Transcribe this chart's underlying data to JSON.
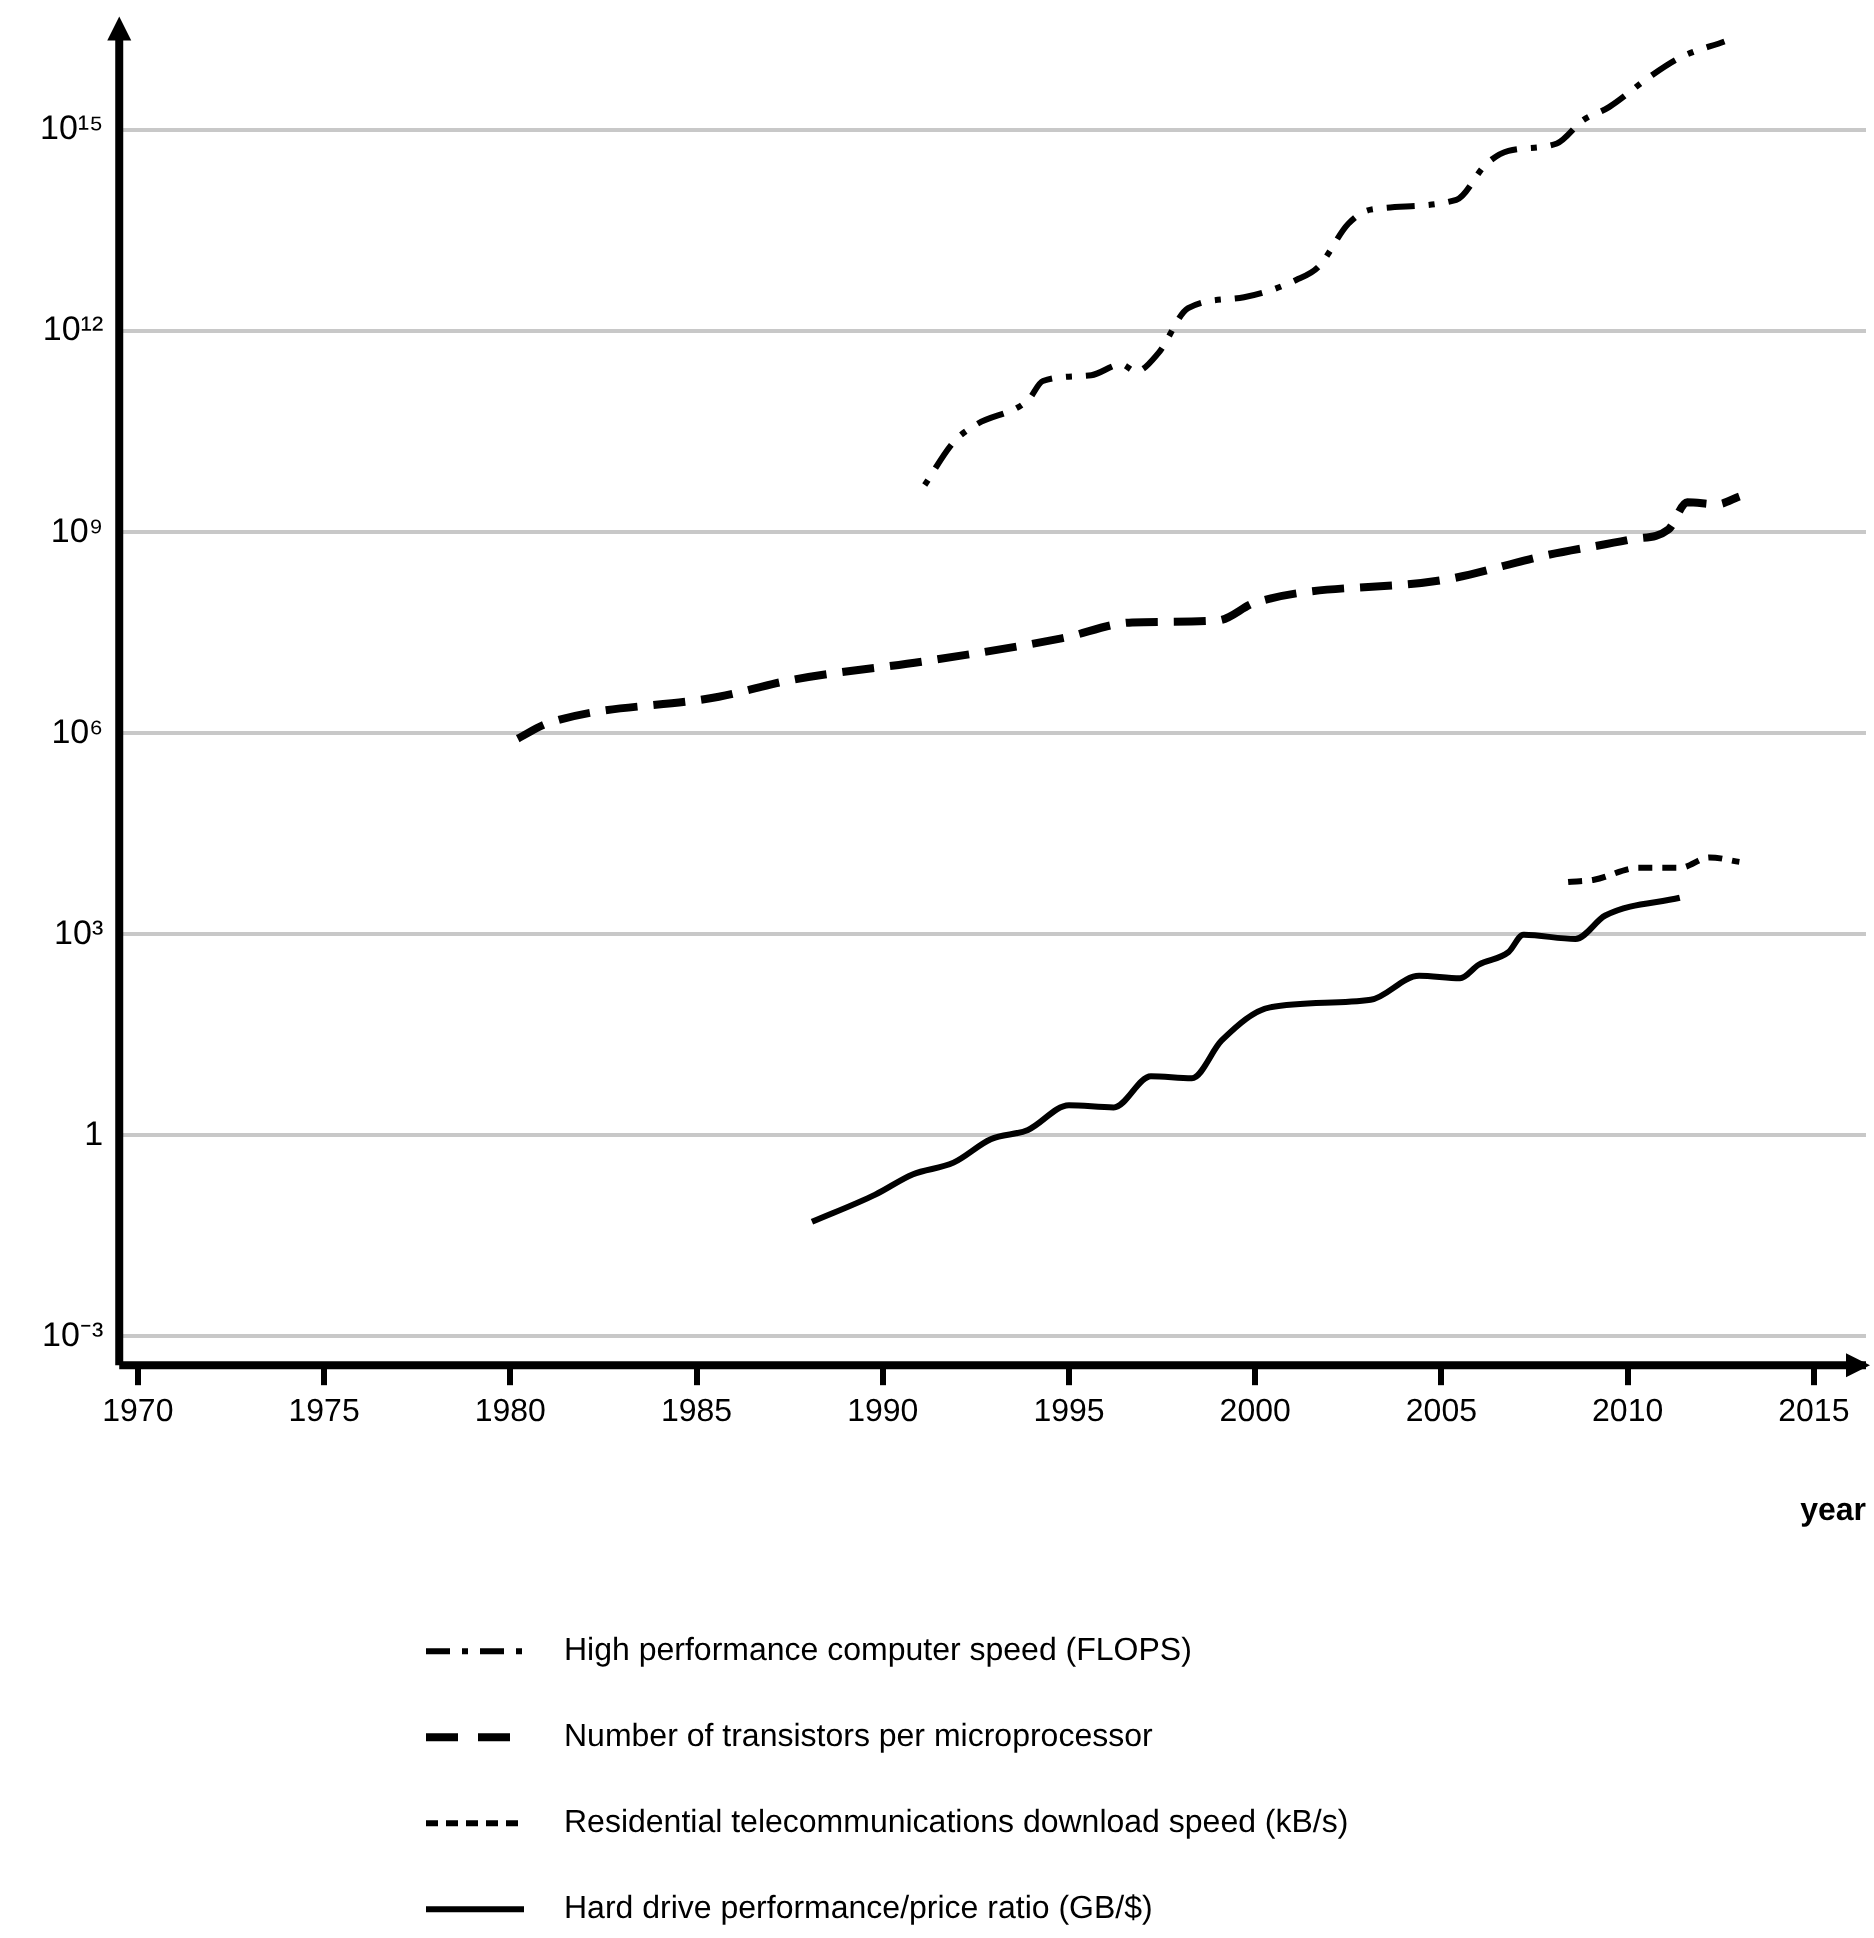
{
  "chart_data": {
    "type": "line",
    "xlabel": "year",
    "log": "y",
    "grid": "y",
    "legend": "bottom",
    "marker": "none",
    "xlim": [
      1969.5,
      2016.4
    ],
    "xticks": [
      1970,
      1975,
      1980,
      1985,
      1990,
      1995,
      2000,
      2005,
      2010,
      2015
    ],
    "ylim": [
      0.00037,
      2.5e+16
    ],
    "yticks": [
      {
        "value": 0.001,
        "label": "10⁻³"
      },
      1,
      {
        "value": 1000,
        "label": "10³"
      },
      {
        "value": 1000000.0,
        "label": "10⁶"
      },
      {
        "value": 1000000000.0,
        "label": "10⁹"
      },
      {
        "value": 1000000000000.0,
        "label": "10¹²"
      },
      {
        "value": 1000000000000000.0,
        "label": "10¹⁵"
      }
    ],
    "series": [
      {
        "name": "High performance computer speed (FLOPS)",
        "color": "#000000",
        "line_style": "dashdot",
        "x": [
          1991.1,
          1991.9,
          1992.5,
          1993.9,
          1994.3,
          1995.6,
          1996.4,
          1996.8,
          1997.4,
          1998.2,
          1999.7,
          2001.1,
          2001.7,
          2002.5,
          2003.1,
          2005.4,
          2006.2,
          2006.8,
          2008.1,
          2008.8,
          2009.5,
          2010.6,
          2011.4,
          2012.6
        ],
        "values": [
          4800000000.0,
          22000000000.0,
          40000000000.0,
          93000000000.0,
          180000000000.0,
          220000000000.0,
          320000000000.0,
          250000000000.0,
          470000000000.0,
          2200000000000.0,
          3200000000000.0,
          5800000000000.0,
          9100000000000.0,
          40000000000000.0,
          65000000000000.0,
          91000000000000.0,
          310000000000000.0,
          490000000000000.0,
          630000000000000.0,
          1400000000000000.0,
          2200000000000000.0,
          6300000000000000.0,
          1.2e+16,
          2.1e+16
        ]
      },
      {
        "name": "Number of transistors per microprocessor",
        "color": "#000000",
        "line_style": "dashed",
        "x": [
          1980.2,
          1981.0,
          1985.6,
          1987.6,
          1991.2,
          1994.8,
          1996.7,
          1999.0,
          2000.0,
          2005.2,
          2007.8,
          2010.1,
          2011.1,
          2011.6,
          2012.4,
          2013.0
        ],
        "values": [
          830000.0,
          1400000.0,
          3500000.0,
          6300000.0,
          12000000.0,
          26000000.0,
          45000000.0,
          48000000.0,
          89000000.0,
          200000000.0,
          450000000.0,
          780000000.0,
          1100000000.0,
          2800000000.0,
          2600000000.0,
          3400000000.0
        ]
      },
      {
        "name": "Residential telecommunications download speed (kB/s)",
        "color": "#000000",
        "line_style": "dotted",
        "x": [
          2008.4,
          2009.1,
          2010.3,
          2011.4,
          2012.2,
          2013.0
        ],
        "values": [
          6000,
          6500,
          9800,
          9800,
          14000,
          12000
        ]
      },
      {
        "name": "Hard drive performance/price ratio (GB/$)",
        "color": "#000000",
        "line_style": "solid",
        "x": [
          1988.1,
          1989.8,
          1990.8,
          1991.9,
          1992.9,
          1993.9,
          1995.0,
          1996.2,
          1997.2,
          1998.3,
          1999.1,
          2000.4,
          2003.1,
          2004.4,
          2005.5,
          2006.0,
          2006.8,
          2007.2,
          2008.6,
          2009.4,
          2011.4
        ],
        "values": [
          0.051,
          0.13,
          0.26,
          0.39,
          0.87,
          1.2,
          2.8,
          2.6,
          7.6,
          7.1,
          26,
          81,
          105,
          240,
          220,
          350,
          540,
          980,
          850,
          1900,
          3500
        ]
      }
    ]
  }
}
